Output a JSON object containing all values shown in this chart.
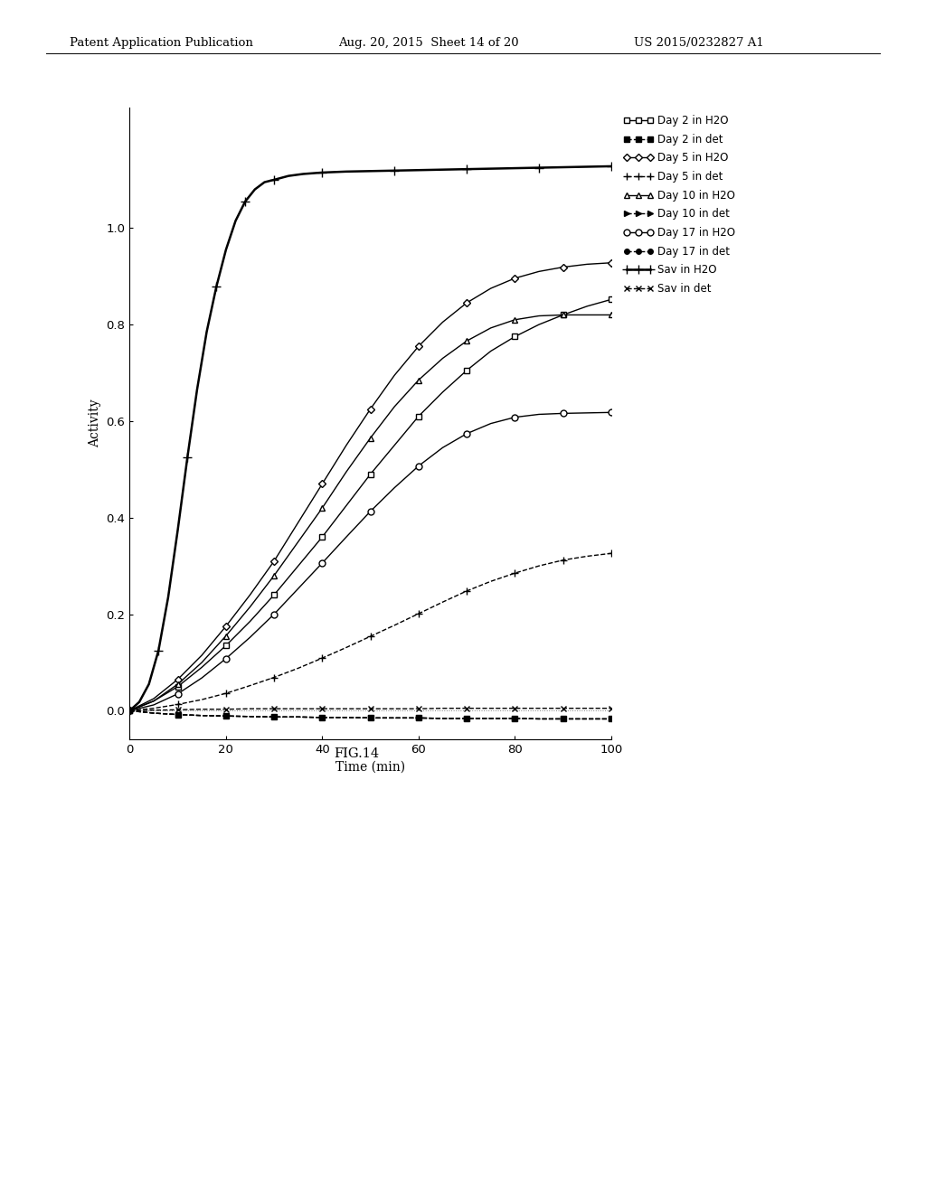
{
  "xlabel": "Time (min)",
  "ylabel": "Activity",
  "fig_caption": "FIG.14",
  "header_left": "Patent Application Publication",
  "header_center": "Aug. 20, 2015  Sheet 14 of 20",
  "header_right": "US 2015/0232827 A1",
  "xlim": [
    0,
    100
  ],
  "ylim": [
    -0.06,
    1.25
  ],
  "yticks": [
    0,
    0.2,
    0.4,
    0.6,
    0.8,
    1.0
  ],
  "xticks": [
    0,
    20,
    40,
    60,
    80,
    100
  ],
  "series": [
    {
      "label": "Day 2 in H2O",
      "marker": "s",
      "linestyle": "-",
      "color": "#000000",
      "markersize": 4,
      "markerfacecolor": "white",
      "linewidth": 1.0,
      "x": [
        0,
        5,
        10,
        15,
        20,
        25,
        30,
        35,
        40,
        45,
        50,
        55,
        60,
        65,
        70,
        75,
        80,
        85,
        90,
        95,
        100
      ],
      "y": [
        0,
        0.02,
        0.05,
        0.09,
        0.135,
        0.185,
        0.24,
        0.3,
        0.36,
        0.425,
        0.49,
        0.55,
        0.61,
        0.66,
        0.705,
        0.745,
        0.775,
        0.8,
        0.82,
        0.838,
        0.852
      ]
    },
    {
      "label": "Day 2 in det",
      "marker": "s",
      "linestyle": "--",
      "color": "#000000",
      "markersize": 4,
      "markerfacecolor": "#000000",
      "linewidth": 1.0,
      "x": [
        0,
        5,
        10,
        15,
        20,
        25,
        30,
        35,
        40,
        45,
        50,
        55,
        60,
        65,
        70,
        75,
        80,
        85,
        90,
        95,
        100
      ],
      "y": [
        0,
        -0.005,
        -0.008,
        -0.01,
        -0.011,
        -0.012,
        -0.013,
        -0.013,
        -0.014,
        -0.014,
        -0.015,
        -0.015,
        -0.015,
        -0.016,
        -0.016,
        -0.016,
        -0.016,
        -0.017,
        -0.017,
        -0.017,
        -0.017
      ]
    },
    {
      "label": "Day 5 in H2O",
      "marker": "D",
      "linestyle": "-",
      "color": "#000000",
      "markersize": 4,
      "markerfacecolor": "white",
      "linewidth": 1.0,
      "x": [
        0,
        5,
        10,
        15,
        20,
        25,
        30,
        35,
        40,
        45,
        50,
        55,
        60,
        65,
        70,
        75,
        80,
        85,
        90,
        95,
        100
      ],
      "y": [
        0,
        0.025,
        0.065,
        0.115,
        0.175,
        0.24,
        0.31,
        0.39,
        0.47,
        0.55,
        0.625,
        0.695,
        0.755,
        0.805,
        0.845,
        0.875,
        0.896,
        0.91,
        0.919,
        0.925,
        0.928
      ]
    },
    {
      "label": "Day 5 in det",
      "marker": "+",
      "linestyle": "--",
      "color": "#000000",
      "markersize": 6,
      "markerfacecolor": "#000000",
      "linewidth": 1.0,
      "x": [
        0,
        5,
        10,
        15,
        20,
        25,
        30,
        35,
        40,
        45,
        50,
        55,
        60,
        65,
        70,
        75,
        80,
        85,
        90,
        95,
        100
      ],
      "y": [
        0,
        0.005,
        0.013,
        0.023,
        0.036,
        0.052,
        0.069,
        0.088,
        0.109,
        0.131,
        0.154,
        0.177,
        0.201,
        0.225,
        0.248,
        0.268,
        0.285,
        0.3,
        0.312,
        0.32,
        0.326
      ]
    },
    {
      "label": "Day 10 in H2O",
      "marker": "^",
      "linestyle": "-",
      "color": "#000000",
      "markersize": 5,
      "markerfacecolor": "white",
      "linewidth": 1.0,
      "x": [
        0,
        5,
        10,
        15,
        20,
        25,
        30,
        35,
        40,
        45,
        50,
        55,
        60,
        65,
        70,
        75,
        80,
        85,
        90,
        95,
        100
      ],
      "y": [
        0,
        0.02,
        0.055,
        0.1,
        0.155,
        0.215,
        0.28,
        0.35,
        0.42,
        0.495,
        0.565,
        0.63,
        0.685,
        0.73,
        0.766,
        0.793,
        0.81,
        0.818,
        0.82,
        0.82,
        0.82
      ]
    },
    {
      "label": "Day 10 in det",
      "marker": ">",
      "linestyle": "--",
      "color": "#000000",
      "markersize": 4,
      "markerfacecolor": "#000000",
      "linewidth": 1.0,
      "x": [
        0,
        5,
        10,
        15,
        20,
        25,
        30,
        35,
        40,
        45,
        50,
        55,
        60,
        65,
        70,
        75,
        80,
        85,
        90,
        95,
        100
      ],
      "y": [
        0,
        -0.005,
        -0.008,
        -0.01,
        -0.011,
        -0.012,
        -0.013,
        -0.013,
        -0.014,
        -0.014,
        -0.015,
        -0.015,
        -0.015,
        -0.016,
        -0.016,
        -0.016,
        -0.016,
        -0.017,
        -0.017,
        -0.017,
        -0.017
      ]
    },
    {
      "label": "Day 17 in H2O",
      "marker": "o",
      "linestyle": "-",
      "color": "#000000",
      "markersize": 5,
      "markerfacecolor": "white",
      "linewidth": 1.0,
      "x": [
        0,
        5,
        10,
        15,
        20,
        25,
        30,
        35,
        40,
        45,
        50,
        55,
        60,
        65,
        70,
        75,
        80,
        85,
        90,
        95,
        100
      ],
      "y": [
        0,
        0.012,
        0.035,
        0.068,
        0.108,
        0.152,
        0.2,
        0.253,
        0.306,
        0.36,
        0.413,
        0.462,
        0.507,
        0.545,
        0.574,
        0.595,
        0.608,
        0.614,
        0.616,
        0.617,
        0.618
      ]
    },
    {
      "label": "Day 17 in det",
      "marker": "o",
      "linestyle": "--",
      "color": "#000000",
      "markersize": 4,
      "markerfacecolor": "#000000",
      "linewidth": 1.0,
      "x": [
        0,
        5,
        10,
        15,
        20,
        25,
        30,
        35,
        40,
        45,
        50,
        55,
        60,
        65,
        70,
        75,
        80,
        85,
        90,
        95,
        100
      ],
      "y": [
        0,
        -0.005,
        -0.008,
        -0.01,
        -0.011,
        -0.012,
        -0.013,
        -0.013,
        -0.014,
        -0.014,
        -0.015,
        -0.015,
        -0.015,
        -0.016,
        -0.016,
        -0.016,
        -0.016,
        -0.017,
        -0.017,
        -0.017,
        -0.017
      ]
    },
    {
      "label": "Sav in H2O",
      "marker": "+",
      "linestyle": "-",
      "color": "#000000",
      "markersize": 7,
      "markerfacecolor": "#000000",
      "linewidth": 1.8,
      "x": [
        0,
        2,
        4,
        6,
        8,
        10,
        12,
        14,
        16,
        18,
        20,
        22,
        24,
        26,
        28,
        30,
        33,
        36,
        40,
        45,
        50,
        55,
        60,
        65,
        70,
        75,
        80,
        85,
        90,
        95,
        100
      ],
      "y": [
        0,
        0.018,
        0.055,
        0.125,
        0.235,
        0.375,
        0.525,
        0.665,
        0.785,
        0.878,
        0.955,
        1.015,
        1.055,
        1.08,
        1.095,
        1.1,
        1.108,
        1.112,
        1.115,
        1.117,
        1.118,
        1.119,
        1.12,
        1.121,
        1.122,
        1.123,
        1.124,
        1.125,
        1.126,
        1.127,
        1.128
      ]
    },
    {
      "label": "Sav in det",
      "marker": "x",
      "linestyle": "--",
      "color": "#000000",
      "markersize": 5,
      "markerfacecolor": "#000000",
      "linewidth": 1.0,
      "x": [
        0,
        5,
        10,
        15,
        20,
        25,
        30,
        35,
        40,
        45,
        50,
        55,
        60,
        65,
        70,
        75,
        80,
        85,
        90,
        95,
        100
      ],
      "y": [
        0,
        0.001,
        0.002,
        0.003,
        0.003,
        0.004,
        0.004,
        0.004,
        0.004,
        0.004,
        0.004,
        0.004,
        0.004,
        0.005,
        0.005,
        0.005,
        0.005,
        0.005,
        0.005,
        0.005,
        0.005
      ]
    }
  ],
  "legend_labels": [
    "→Day 2 in H2O",
    "→Day 2 in det",
    "→Day 5 in H2O",
    "→Day 5 in det",
    "→Day 10 in H2O",
    "→Day 10 in det",
    "→Day 17 in H2O",
    "→Day 17 in det",
    "→Sav in H2O",
    "→Sav in det"
  ]
}
